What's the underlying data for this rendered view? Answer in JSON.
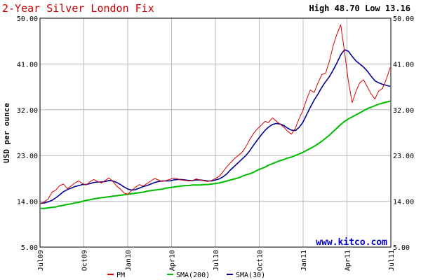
{
  "chart_data": {
    "type": "line",
    "title": "2-Year Silver London Fix",
    "high_label": "High 48.70 Low 13.16",
    "ylabel": "USD per ounce",
    "watermark": "www.kitco.com",
    "ylim": [
      5,
      50
    ],
    "yticks": [
      "50.00",
      "41.00",
      "32.00",
      "23.00",
      "14.00",
      "5.00"
    ],
    "xticks": [
      "Jul09",
      "Oct09",
      "Jan10",
      "Apr10",
      "Jul10",
      "Oct10",
      "Jan11",
      "Apr11",
      "Jul11"
    ],
    "grid": true,
    "legend_position": "bottom",
    "colors": {
      "pm": "#dd0000",
      "sma200": "#00bb00",
      "sma30": "#000099",
      "grid": "#bbbbbb"
    },
    "series": [
      {
        "name": "PM",
        "values": [
          13.6,
          13.9,
          14.5,
          15.8,
          16.2,
          17.1,
          17.4,
          16.5,
          17.0,
          17.6,
          18.0,
          17.5,
          17.2,
          17.9,
          18.3,
          17.9,
          17.6,
          18.1,
          18.6,
          17.9,
          17.0,
          16.4,
          15.6,
          15.4,
          16.2,
          16.8,
          17.3,
          17.0,
          17.5,
          18.0,
          18.5,
          18.2,
          17.9,
          18.1,
          18.3,
          18.6,
          18.4,
          18.2,
          18.1,
          18.0,
          18.1,
          18.4,
          18.2,
          18.0,
          17.9,
          18.1,
          18.5,
          18.9,
          19.8,
          20.8,
          21.6,
          22.4,
          23.0,
          23.6,
          24.7,
          26.1,
          27.3,
          28.2,
          28.9,
          29.7,
          29.5,
          30.4,
          29.8,
          29.2,
          28.6,
          27.8,
          27.2,
          28.3,
          30.2,
          31.8,
          34.0,
          35.9,
          35.4,
          37.3,
          38.9,
          39.2,
          41.5,
          44.6,
          46.9,
          48.7,
          43.4,
          37.6,
          33.4,
          35.6,
          37.3,
          37.9,
          36.5,
          35.1,
          34.1,
          35.7,
          36.2,
          38.0,
          40.3
        ]
      },
      {
        "name": "SMA(200)",
        "values": [
          12.6,
          12.6,
          12.7,
          12.8,
          12.9,
          13.1,
          13.2,
          13.4,
          13.5,
          13.7,
          13.8,
          14.0,
          14.2,
          14.3,
          14.5,
          14.6,
          14.7,
          14.8,
          14.9,
          15.0,
          15.1,
          15.2,
          15.3,
          15.4,
          15.5,
          15.6,
          15.7,
          15.8,
          16.0,
          16.1,
          16.2,
          16.3,
          16.4,
          16.6,
          16.7,
          16.8,
          16.9,
          17.0,
          17.1,
          17.1,
          17.2,
          17.2,
          17.2,
          17.3,
          17.3,
          17.4,
          17.5,
          17.6,
          17.8,
          18.0,
          18.2,
          18.4,
          18.6,
          18.9,
          19.2,
          19.4,
          19.7,
          20.1,
          20.4,
          20.7,
          21.1,
          21.4,
          21.7,
          22.0,
          22.2,
          22.5,
          22.7,
          23.0,
          23.3,
          23.6,
          24.0,
          24.4,
          24.8,
          25.3,
          25.8,
          26.4,
          27.0,
          27.7,
          28.4,
          29.1,
          29.7,
          30.2,
          30.6,
          31.0,
          31.4,
          31.8,
          32.2,
          32.5,
          32.8,
          33.1,
          33.3,
          33.5,
          33.7
        ]
      },
      {
        "name": "SMA(30)",
        "values": [
          13.6,
          13.7,
          13.9,
          14.2,
          14.7,
          15.3,
          15.9,
          16.3,
          16.6,
          16.9,
          17.1,
          17.3,
          17.3,
          17.5,
          17.7,
          17.8,
          17.8,
          17.9,
          18.1,
          18.0,
          17.7,
          17.3,
          16.8,
          16.4,
          16.2,
          16.3,
          16.6,
          16.9,
          17.1,
          17.4,
          17.7,
          17.9,
          18.0,
          18.0,
          18.0,
          18.2,
          18.3,
          18.3,
          18.2,
          18.1,
          18.1,
          18.2,
          18.2,
          18.1,
          18.0,
          18.0,
          18.2,
          18.4,
          18.8,
          19.4,
          20.2,
          20.9,
          21.6,
          22.3,
          23.0,
          23.9,
          25.0,
          26.0,
          27.0,
          27.9,
          28.6,
          29.1,
          29.3,
          29.2,
          28.9,
          28.4,
          28.0,
          27.9,
          28.5,
          29.5,
          31.0,
          32.5,
          33.9,
          35.1,
          36.4,
          37.5,
          38.5,
          39.8,
          41.2,
          42.8,
          43.8,
          43.5,
          42.5,
          41.6,
          41.0,
          40.4,
          39.6,
          38.6,
          37.7,
          37.3,
          37.0,
          36.8,
          36.6
        ]
      }
    ]
  }
}
